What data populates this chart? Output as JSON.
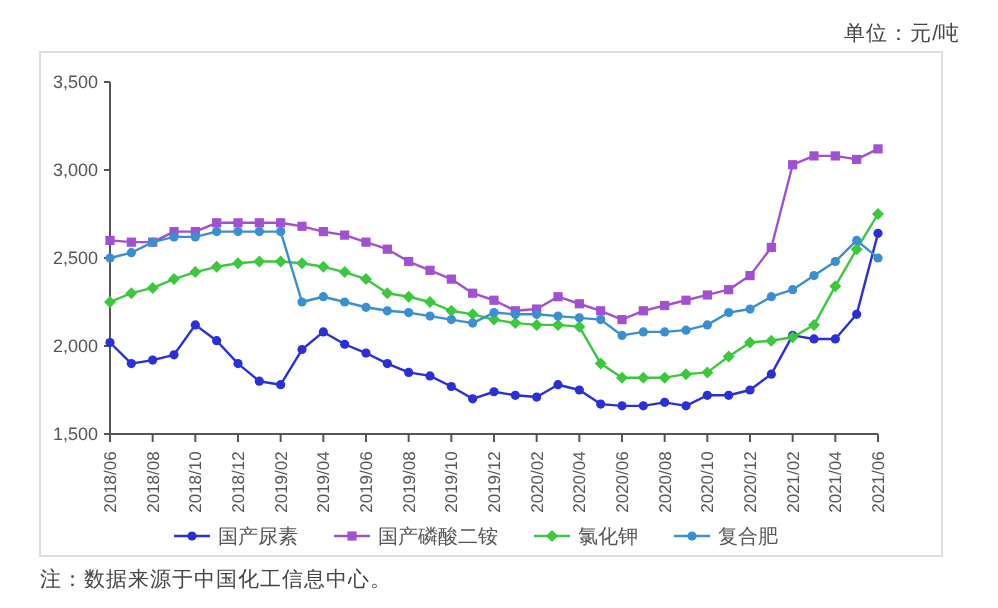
{
  "chart_data": {
    "type": "line",
    "categories": [
      "2018/06",
      null,
      "2018/08",
      null,
      "2018/10",
      null,
      "2018/12",
      null,
      "2019/02",
      null,
      "2019/04",
      null,
      "2019/06",
      null,
      "2019/08",
      null,
      "2019/10",
      null,
      "2019/12",
      null,
      "2020/02",
      null,
      "2020/04",
      null,
      "2020/06",
      null,
      "2020/08",
      null,
      "2020/10",
      null,
      "2020/12",
      null,
      "2021/02",
      null,
      "2021/04",
      null,
      "2021/06"
    ],
    "series": [
      {
        "name": "国产尿素",
        "color": "#2b2fd6",
        "marker": "circle",
        "values": [
          2020,
          1900,
          1920,
          1950,
          2120,
          2030,
          1900,
          1800,
          1780,
          1980,
          2080,
          2010,
          1960,
          1900,
          1850,
          1830,
          1770,
          1700,
          1740,
          1720,
          1710,
          1780,
          1750,
          1670,
          1660,
          1660,
          1680,
          1660,
          1720,
          1720,
          1750,
          1840,
          2060,
          2040,
          2040,
          2180,
          2640
        ]
      },
      {
        "name": "国产磷酸二铵",
        "color": "#a050d0",
        "marker": "square",
        "values": [
          2600,
          2590,
          2590,
          2650,
          2650,
          2700,
          2700,
          2700,
          2700,
          2680,
          2650,
          2630,
          2590,
          2550,
          2480,
          2430,
          2380,
          2300,
          2260,
          2200,
          2210,
          2280,
          2240,
          2200,
          2150,
          2200,
          2230,
          2260,
          2290,
          2320,
          2400,
          2560,
          3030,
          3080,
          3080,
          3060,
          3120
        ]
      },
      {
        "name": "氯化钾",
        "color": "#3cc83c",
        "marker": "diamond",
        "values": [
          2250,
          2300,
          2330,
          2380,
          2420,
          2450,
          2470,
          2480,
          2480,
          2470,
          2450,
          2420,
          2380,
          2300,
          2280,
          2250,
          2200,
          2180,
          2150,
          2130,
          2120,
          2120,
          2110,
          1900,
          1820,
          1820,
          1820,
          1840,
          1850,
          1940,
          2020,
          2030,
          2050,
          2120,
          2340,
          2550,
          2750
        ]
      },
      {
        "name": "复合肥",
        "color": "#3a8fd0",
        "marker": "circle",
        "values": [
          2500,
          2530,
          2590,
          2620,
          2620,
          2650,
          2650,
          2650,
          2650,
          2250,
          2280,
          2250,
          2220,
          2200,
          2190,
          2170,
          2150,
          2130,
          2190,
          2180,
          2180,
          2170,
          2160,
          2150,
          2060,
          2080,
          2080,
          2090,
          2120,
          2190,
          2210,
          2280,
          2320,
          2400,
          2480,
          2600,
          2500
        ]
      }
    ],
    "ylim": [
      1500,
      3500
    ],
    "yticks": [
      {
        "value": 1500,
        "label": "1,500"
      },
      {
        "value": 2000,
        "label": "2,000"
      },
      {
        "value": 2500,
        "label": "2,500"
      },
      {
        "value": 3000,
        "label": "3,000"
      },
      {
        "value": 3500,
        "label": "3,500"
      }
    ],
    "grid": false,
    "legend": "bottom",
    "annotations": [
      "单位：元/吨",
      "注：数据来源于中国化工信息中心。"
    ]
  }
}
